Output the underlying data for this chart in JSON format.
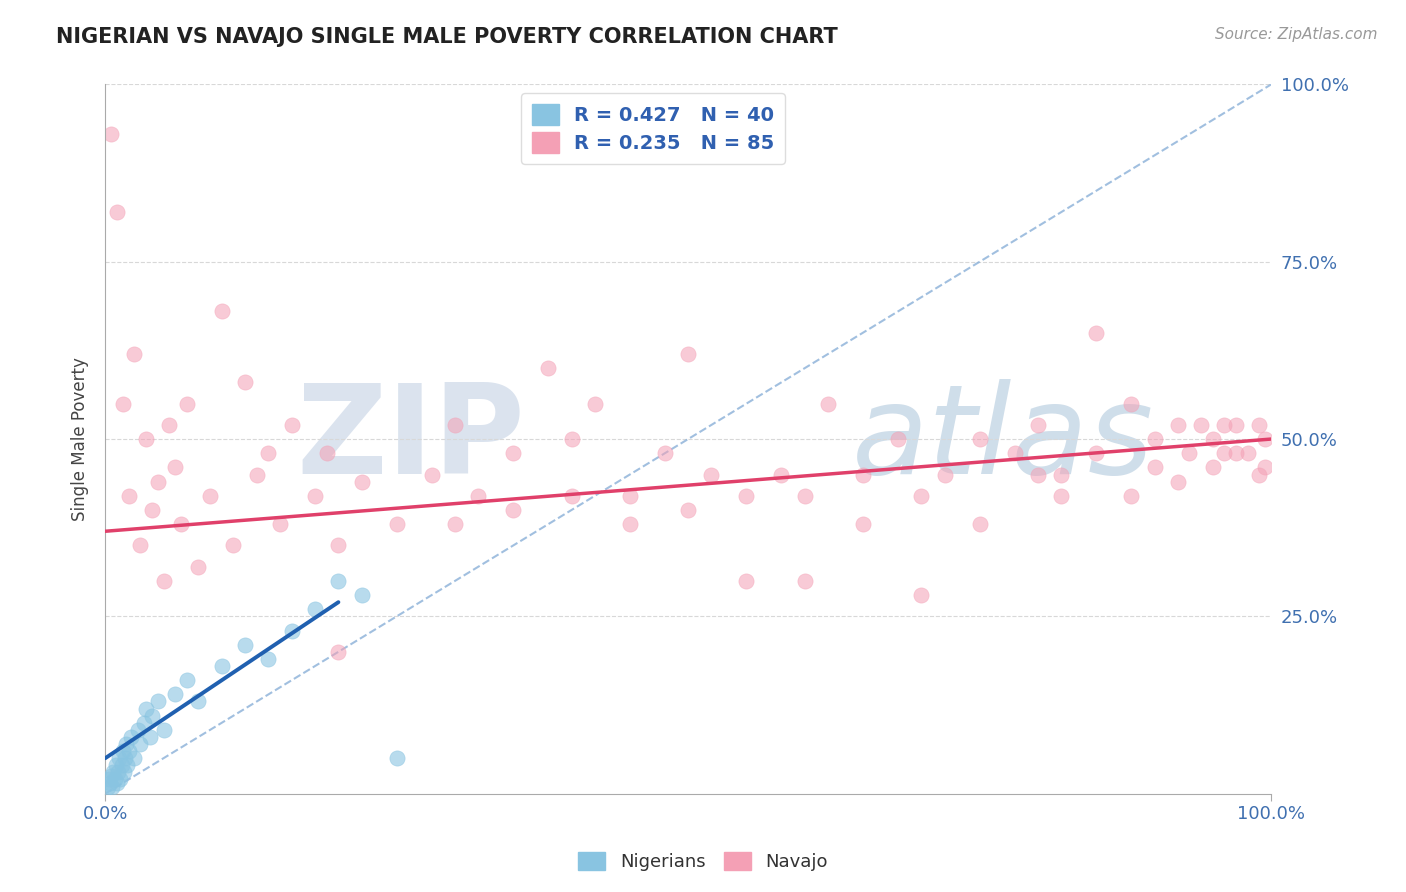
{
  "title": "NIGERIAN VS NAVAJO SINGLE MALE POVERTY CORRELATION CHART",
  "source": "Source: ZipAtlas.com",
  "ylabel": "Single Male Poverty",
  "xlim": [
    0,
    1
  ],
  "ylim": [
    0,
    1
  ],
  "nigerian_color": "#89c4e1",
  "navajo_color": "#f4a0b5",
  "nigerian_line_color": "#2060b0",
  "navajo_line_color": "#e0406a",
  "dashed_line_color": "#8ab0d8",
  "background_color": "#ffffff",
  "grid_color": "#d8d8d8",
  "watermark_zip": "ZIP",
  "watermark_atlas": "atlas",
  "watermark_color_zip": "#d0d8e8",
  "watermark_color_atlas": "#b8cce0",
  "title_color": "#222222",
  "axis_label_color": "#4070b0",
  "nigerian_R": 0.427,
  "nigerian_N": 40,
  "navajo_R": 0.235,
  "navajo_N": 85,
  "nigerian_line_x": [
    0.0,
    0.2
  ],
  "nigerian_line_y": [
    0.05,
    0.27
  ],
  "navajo_line_x": [
    0.0,
    1.0
  ],
  "navajo_line_y": [
    0.37,
    0.5
  ],
  "dashed_line_x": [
    0.0,
    1.0
  ],
  "dashed_line_y": [
    0.0,
    1.0
  ],
  "nigerian_points": [
    [
      0.002,
      0.01
    ],
    [
      0.003,
      0.02
    ],
    [
      0.004,
      0.015
    ],
    [
      0.005,
      0.025
    ],
    [
      0.006,
      0.01
    ],
    [
      0.007,
      0.03
    ],
    [
      0.008,
      0.02
    ],
    [
      0.009,
      0.04
    ],
    [
      0.01,
      0.015
    ],
    [
      0.011,
      0.03
    ],
    [
      0.012,
      0.05
    ],
    [
      0.013,
      0.02
    ],
    [
      0.014,
      0.04
    ],
    [
      0.015,
      0.06
    ],
    [
      0.016,
      0.03
    ],
    [
      0.017,
      0.05
    ],
    [
      0.018,
      0.07
    ],
    [
      0.019,
      0.04
    ],
    [
      0.02,
      0.06
    ],
    [
      0.022,
      0.08
    ],
    [
      0.025,
      0.05
    ],
    [
      0.028,
      0.09
    ],
    [
      0.03,
      0.07
    ],
    [
      0.033,
      0.1
    ],
    [
      0.035,
      0.12
    ],
    [
      0.038,
      0.08
    ],
    [
      0.04,
      0.11
    ],
    [
      0.045,
      0.13
    ],
    [
      0.05,
      0.09
    ],
    [
      0.06,
      0.14
    ],
    [
      0.07,
      0.16
    ],
    [
      0.08,
      0.13
    ],
    [
      0.1,
      0.18
    ],
    [
      0.12,
      0.21
    ],
    [
      0.14,
      0.19
    ],
    [
      0.16,
      0.23
    ],
    [
      0.18,
      0.26
    ],
    [
      0.2,
      0.3
    ],
    [
      0.22,
      0.28
    ],
    [
      0.25,
      0.05
    ]
  ],
  "navajo_points": [
    [
      0.005,
      0.93
    ],
    [
      0.01,
      0.82
    ],
    [
      0.015,
      0.55
    ],
    [
      0.02,
      0.42
    ],
    [
      0.025,
      0.62
    ],
    [
      0.03,
      0.35
    ],
    [
      0.035,
      0.5
    ],
    [
      0.04,
      0.4
    ],
    [
      0.045,
      0.44
    ],
    [
      0.05,
      0.3
    ],
    [
      0.055,
      0.52
    ],
    [
      0.06,
      0.46
    ],
    [
      0.065,
      0.38
    ],
    [
      0.07,
      0.55
    ],
    [
      0.08,
      0.32
    ],
    [
      0.09,
      0.42
    ],
    [
      0.1,
      0.68
    ],
    [
      0.11,
      0.35
    ],
    [
      0.12,
      0.58
    ],
    [
      0.13,
      0.45
    ],
    [
      0.14,
      0.48
    ],
    [
      0.15,
      0.38
    ],
    [
      0.16,
      0.52
    ],
    [
      0.18,
      0.42
    ],
    [
      0.19,
      0.48
    ],
    [
      0.2,
      0.35
    ],
    [
      0.22,
      0.44
    ],
    [
      0.25,
      0.38
    ],
    [
      0.28,
      0.45
    ],
    [
      0.3,
      0.52
    ],
    [
      0.32,
      0.42
    ],
    [
      0.35,
      0.48
    ],
    [
      0.38,
      0.6
    ],
    [
      0.4,
      0.5
    ],
    [
      0.42,
      0.55
    ],
    [
      0.45,
      0.42
    ],
    [
      0.48,
      0.48
    ],
    [
      0.5,
      0.62
    ],
    [
      0.52,
      0.45
    ],
    [
      0.55,
      0.3
    ],
    [
      0.58,
      0.45
    ],
    [
      0.6,
      0.3
    ],
    [
      0.62,
      0.55
    ],
    [
      0.65,
      0.45
    ],
    [
      0.68,
      0.5
    ],
    [
      0.7,
      0.28
    ],
    [
      0.72,
      0.45
    ],
    [
      0.75,
      0.5
    ],
    [
      0.78,
      0.48
    ],
    [
      0.8,
      0.52
    ],
    [
      0.82,
      0.45
    ],
    [
      0.85,
      0.65
    ],
    [
      0.88,
      0.55
    ],
    [
      0.9,
      0.5
    ],
    [
      0.92,
      0.52
    ],
    [
      0.93,
      0.48
    ],
    [
      0.94,
      0.52
    ],
    [
      0.95,
      0.5
    ],
    [
      0.96,
      0.48
    ],
    [
      0.97,
      0.52
    ],
    [
      0.98,
      0.48
    ],
    [
      0.99,
      0.52
    ],
    [
      0.995,
      0.5
    ],
    [
      0.995,
      0.46
    ],
    [
      0.99,
      0.45
    ],
    [
      0.97,
      0.48
    ],
    [
      0.96,
      0.52
    ],
    [
      0.95,
      0.46
    ],
    [
      0.92,
      0.44
    ],
    [
      0.9,
      0.46
    ],
    [
      0.88,
      0.42
    ],
    [
      0.85,
      0.48
    ],
    [
      0.82,
      0.42
    ],
    [
      0.8,
      0.45
    ],
    [
      0.75,
      0.38
    ],
    [
      0.7,
      0.42
    ],
    [
      0.65,
      0.38
    ],
    [
      0.6,
      0.42
    ],
    [
      0.55,
      0.42
    ],
    [
      0.5,
      0.4
    ],
    [
      0.45,
      0.38
    ],
    [
      0.4,
      0.42
    ],
    [
      0.35,
      0.4
    ],
    [
      0.3,
      0.38
    ],
    [
      0.2,
      0.2
    ]
  ]
}
